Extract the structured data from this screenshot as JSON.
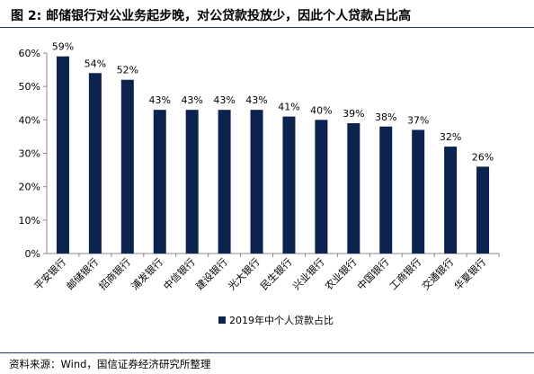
{
  "title": "图 2:  邮储银行对公业务起步晚，对公贷款投放少，因此个人贷款占比高",
  "source": "资料来源：Wind，国信证券经济研究所整理",
  "chart_data": {
    "type": "bar",
    "categories": [
      "平安银行",
      "邮储银行",
      "招商银行",
      "浦发银行",
      "中信银行",
      "建设银行",
      "光大银行",
      "民生银行",
      "兴业银行",
      "农业银行",
      "中国银行",
      "工商银行",
      "交通银行",
      "华夏银行"
    ],
    "series": [
      {
        "name": "2019年中个人贷款占比",
        "values": [
          59,
          54,
          52,
          43,
          43,
          43,
          43,
          41,
          40,
          39,
          38,
          37,
          32,
          26
        ],
        "labels": [
          "59%",
          "54%",
          "52%",
          "43%",
          "43%",
          "43%",
          "43%",
          "41%",
          "40%",
          "39%",
          "38%",
          "37%",
          "32%",
          "26%"
        ]
      }
    ],
    "ylim": [
      0,
      60
    ],
    "yticks": [
      0,
      10,
      20,
      30,
      40,
      50,
      60
    ],
    "ytick_labels": [
      "0%",
      "10%",
      "20%",
      "30%",
      "40%",
      "50%",
      "60%"
    ],
    "legend_position": "bottom",
    "grid": false,
    "bar_color": "#0c2350"
  }
}
